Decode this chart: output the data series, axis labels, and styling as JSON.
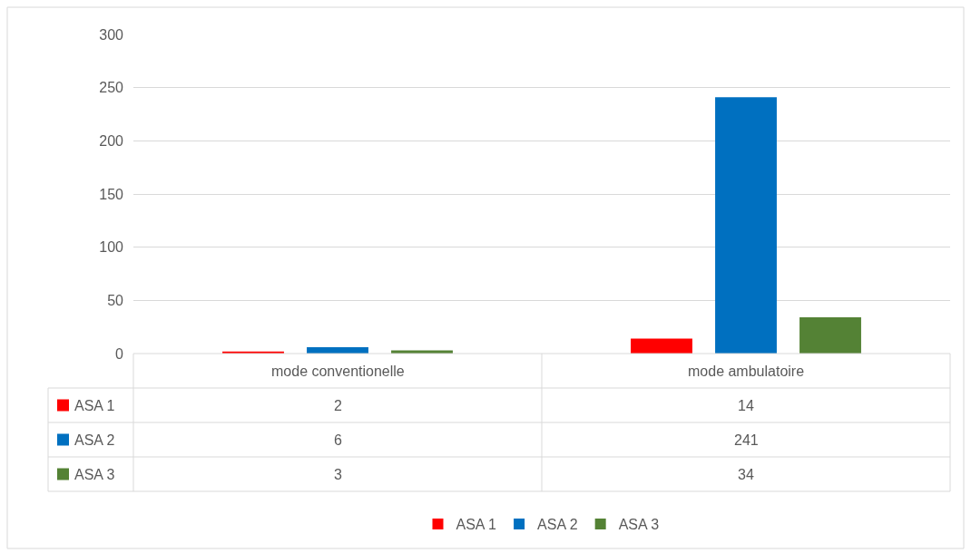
{
  "chart_data": {
    "type": "bar",
    "categories": [
      "mode conventionelle",
      "mode ambulatoire"
    ],
    "series": [
      {
        "name": "ASA 1",
        "color": "#ff0000",
        "values": [
          2,
          14
        ]
      },
      {
        "name": "ASA 2",
        "color": "#0070c0",
        "values": [
          6,
          241
        ]
      },
      {
        "name": "ASA 3",
        "color": "#548235",
        "values": [
          3,
          34
        ]
      }
    ],
    "ylim": [
      0,
      300
    ],
    "yticks": [
      0,
      50,
      100,
      150,
      200,
      250,
      300
    ],
    "grid": "y",
    "legend": "bottom",
    "data_labels": true
  }
}
